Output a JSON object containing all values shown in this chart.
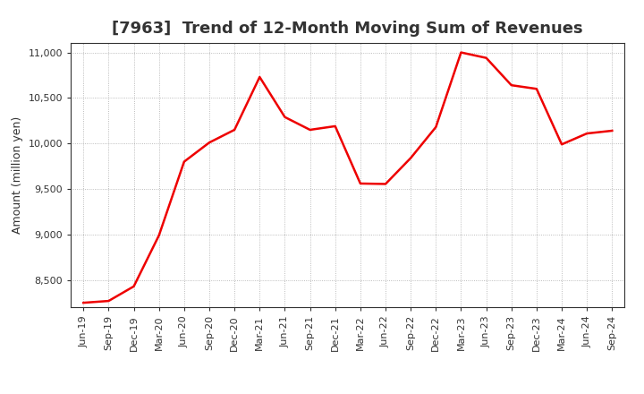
{
  "title": "[7963]  Trend of 12-Month Moving Sum of Revenues",
  "ylabel": "Amount (million yen)",
  "line_color": "#EE0000",
  "background_color": "#FFFFFF",
  "plot_bg_color": "#FFFFFF",
  "grid_color": "#AAAAAA",
  "ylim": [
    8200,
    11100
  ],
  "yticks": [
    8500,
    9000,
    9500,
    10000,
    10500,
    11000
  ],
  "labels": [
    "Jun-19",
    "Sep-19",
    "Dec-19",
    "Mar-20",
    "Jun-20",
    "Sep-20",
    "Dec-20",
    "Mar-21",
    "Jun-21",
    "Sep-21",
    "Dec-21",
    "Mar-22",
    "Jun-22",
    "Sep-22",
    "Dec-22",
    "Mar-23",
    "Jun-23",
    "Sep-23",
    "Dec-23",
    "Mar-24",
    "Jun-24",
    "Sep-24"
  ],
  "values": [
    8250,
    8270,
    8430,
    8990,
    9800,
    10010,
    10150,
    10730,
    10290,
    10150,
    10190,
    9560,
    9555,
    9840,
    10180,
    11000,
    10940,
    10640,
    10600,
    9990,
    10110,
    10140
  ],
  "title_fontsize": 13,
  "ylabel_fontsize": 9,
  "tick_labelsize": 8,
  "line_width": 1.8
}
